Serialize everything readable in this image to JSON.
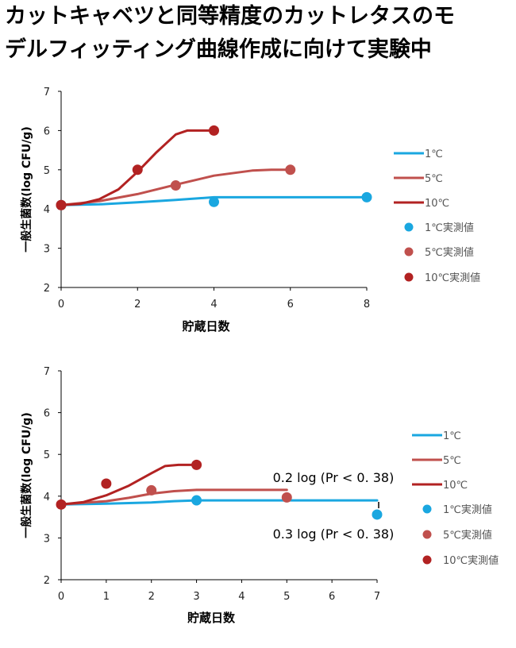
{
  "page_title": {
    "line1": "カットキャベツと同等精度のカットレタスのモ",
    "line2": "デルフィッティング曲線作成に向けて実験中"
  },
  "colors": {
    "c1": "#1aa7e0",
    "c5": "#c0504d",
    "c10": "#b22222",
    "axis": "#000000"
  },
  "chart_data": [
    {
      "type": "line",
      "xlabel": "貯蔵日数",
      "ylabel": "一般生菌数(log CFU/g)",
      "xlim": [
        0,
        8
      ],
      "ylim": [
        2,
        7
      ],
      "xticks": [
        0,
        2,
        4,
        6,
        8
      ],
      "yticks": [
        2,
        3,
        4,
        5,
        6,
        7
      ],
      "grid": false,
      "legend_position": "right",
      "legend": [
        "1℃",
        "5℃",
        "10℃",
        "1℃実測値",
        "5℃実測値",
        "10℃実測値"
      ],
      "series": [
        {
          "name": "1℃",
          "kind": "line",
          "color": "#1aa7e0",
          "x": [
            0,
            1,
            2,
            3,
            4,
            5,
            6,
            7,
            8
          ],
          "y": [
            4.1,
            4.12,
            4.17,
            4.23,
            4.3,
            4.3,
            4.3,
            4.3,
            4.3
          ]
        },
        {
          "name": "5℃",
          "kind": "line",
          "color": "#c0504d",
          "x": [
            0,
            1,
            2,
            3,
            4,
            5,
            5.5,
            6
          ],
          "y": [
            4.1,
            4.2,
            4.38,
            4.62,
            4.85,
            4.98,
            5.0,
            5.0
          ]
        },
        {
          "name": "10℃",
          "kind": "line",
          "color": "#b22222",
          "x": [
            0,
            0.5,
            1,
            1.5,
            2,
            2.5,
            3,
            3.3,
            3.6,
            4
          ],
          "y": [
            4.1,
            4.13,
            4.25,
            4.5,
            4.95,
            5.45,
            5.9,
            6.0,
            6.0,
            6.0
          ]
        },
        {
          "name": "1℃実測値",
          "kind": "scatter",
          "color": "#1aa7e0",
          "x": [
            0,
            4,
            8
          ],
          "y": [
            4.1,
            4.18,
            4.3
          ]
        },
        {
          "name": "5℃実測値",
          "kind": "scatter",
          "color": "#c0504d",
          "x": [
            0,
            3,
            6
          ],
          "y": [
            4.1,
            4.6,
            5.0
          ]
        },
        {
          "name": "10℃実測値",
          "kind": "scatter",
          "color": "#b22222",
          "x": [
            0,
            2,
            4
          ],
          "y": [
            4.1,
            5.0,
            6.0
          ]
        }
      ],
      "annotations": []
    },
    {
      "type": "line",
      "xlabel": "貯蔵日数",
      "ylabel": "一般生菌数(log CFU/g)",
      "xlim": [
        0,
        7
      ],
      "ylim": [
        2,
        7
      ],
      "xticks": [
        0,
        1,
        2,
        3,
        4,
        5,
        6,
        7
      ],
      "yticks": [
        2,
        3,
        4,
        5,
        6,
        7
      ],
      "grid": false,
      "legend_position": "right",
      "legend": [
        "1℃",
        "5℃",
        "10℃",
        "1℃実測値",
        "5℃実測値",
        "10℃実測値"
      ],
      "series": [
        {
          "name": "1℃",
          "kind": "line",
          "color": "#1aa7e0",
          "x": [
            0,
            1,
            2,
            2.5,
            3,
            4,
            5,
            6,
            7
          ],
          "y": [
            3.8,
            3.82,
            3.85,
            3.88,
            3.9,
            3.9,
            3.9,
            3.9,
            3.9
          ]
        },
        {
          "name": "5℃",
          "kind": "line",
          "color": "#c0504d",
          "x": [
            0,
            1,
            1.5,
            2,
            2.5,
            3,
            4,
            5
          ],
          "y": [
            3.8,
            3.88,
            3.96,
            4.06,
            4.12,
            4.15,
            4.15,
            4.15
          ]
        },
        {
          "name": "10℃",
          "kind": "line",
          "color": "#b22222",
          "x": [
            0,
            0.5,
            1,
            1.5,
            2,
            2.3,
            2.6,
            3
          ],
          "y": [
            3.8,
            3.86,
            4.02,
            4.25,
            4.55,
            4.72,
            4.75,
            4.75
          ]
        },
        {
          "name": "1℃実測値",
          "kind": "scatter",
          "color": "#1aa7e0",
          "x": [
            3,
            7
          ],
          "y": [
            3.9,
            3.56
          ]
        },
        {
          "name": "5℃実測値",
          "kind": "scatter",
          "color": "#c0504d",
          "x": [
            2,
            5
          ],
          "y": [
            4.14,
            3.97
          ]
        },
        {
          "name": "10℃実測値",
          "kind": "scatter",
          "color": "#b22222",
          "x": [
            0,
            1,
            3
          ],
          "y": [
            3.8,
            4.3,
            4.75
          ]
        }
      ],
      "annotations": [
        "0.2 log (Pr < 0. 38)",
        "0.3 log (Pr < 0. 38)"
      ]
    }
  ]
}
